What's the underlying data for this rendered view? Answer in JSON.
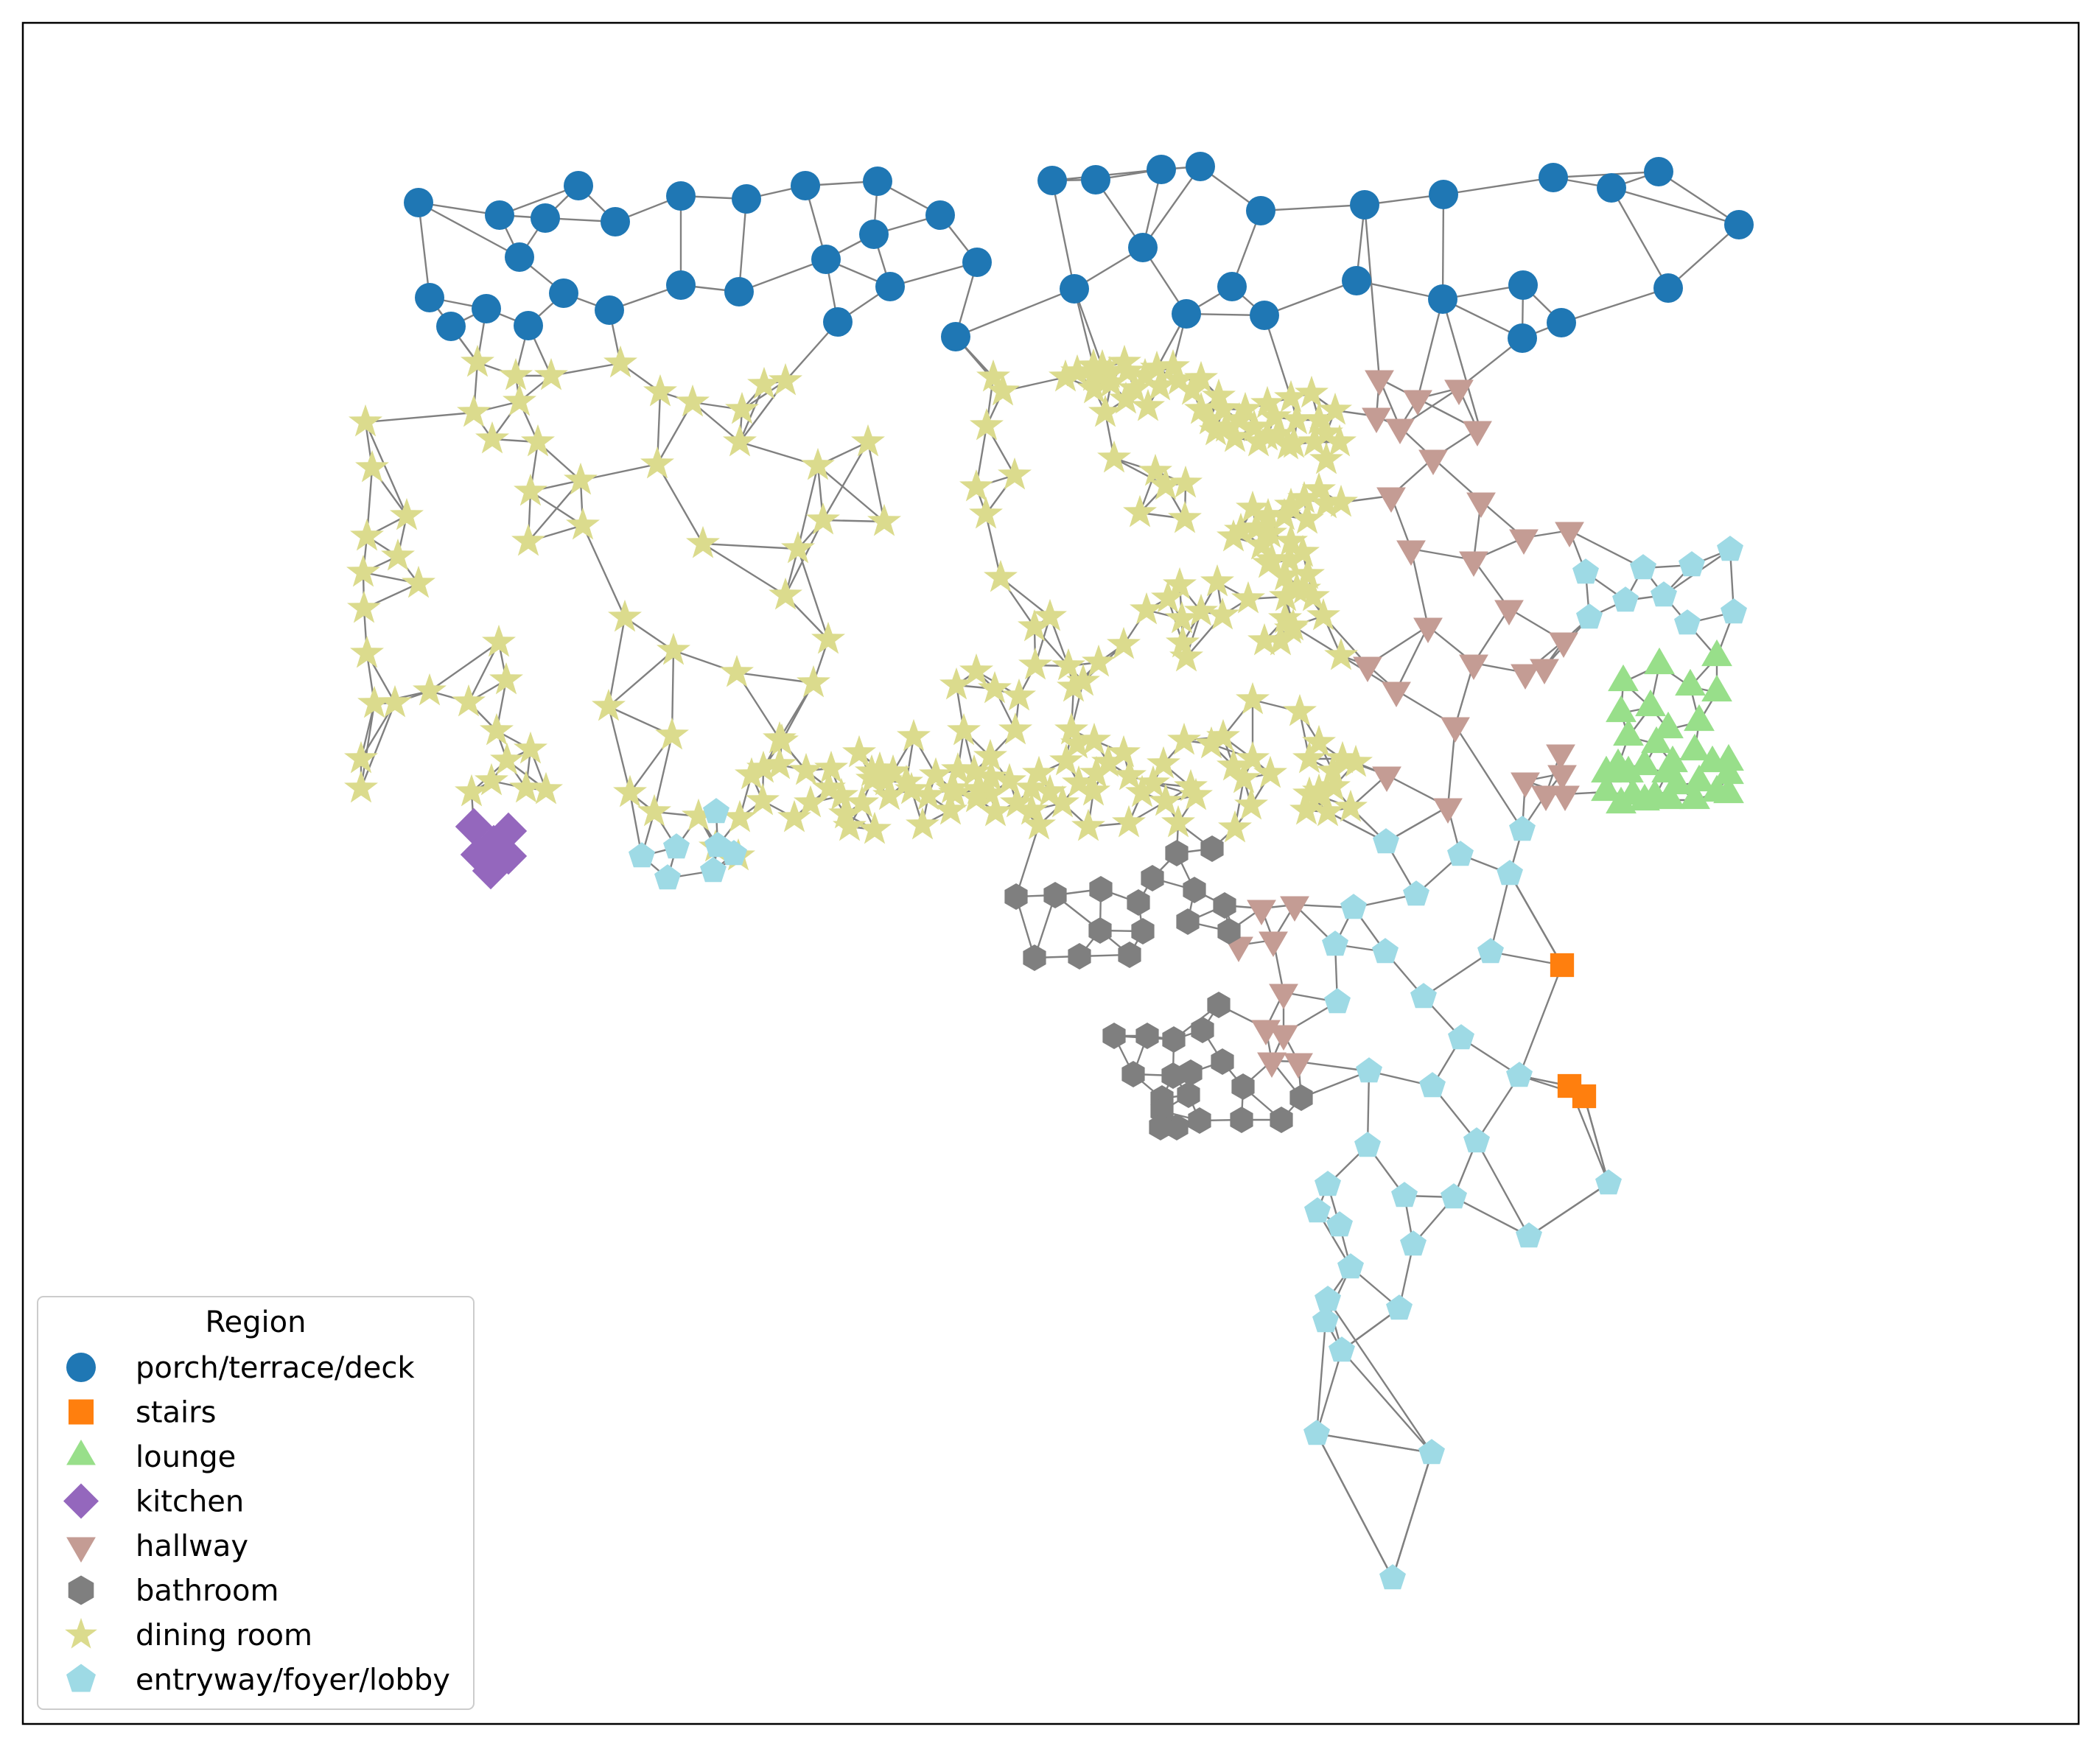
{
  "legend": {
    "title": "Region",
    "items": [
      {
        "label": "porch/terrace/deck",
        "marker": "circle",
        "color": "#1f77b4"
      },
      {
        "label": "stairs",
        "marker": "square",
        "color": "#ff7f0e"
      },
      {
        "label": "lounge",
        "marker": "triangle-up",
        "color": "#98df8a"
      },
      {
        "label": "kitchen",
        "marker": "diamond",
        "color": "#9467bd"
      },
      {
        "label": "hallway",
        "marker": "triangle-down",
        "color": "#c49c94"
      },
      {
        "label": "bathroom",
        "marker": "hexagon",
        "color": "#7f7f7f"
      },
      {
        "label": "dining room",
        "marker": "star",
        "color": "#dbdb8d"
      },
      {
        "label": "entryway/foyer/lobby",
        "marker": "pentagon",
        "color": "#9edae5"
      }
    ]
  },
  "edge_color": "#808080"
}
